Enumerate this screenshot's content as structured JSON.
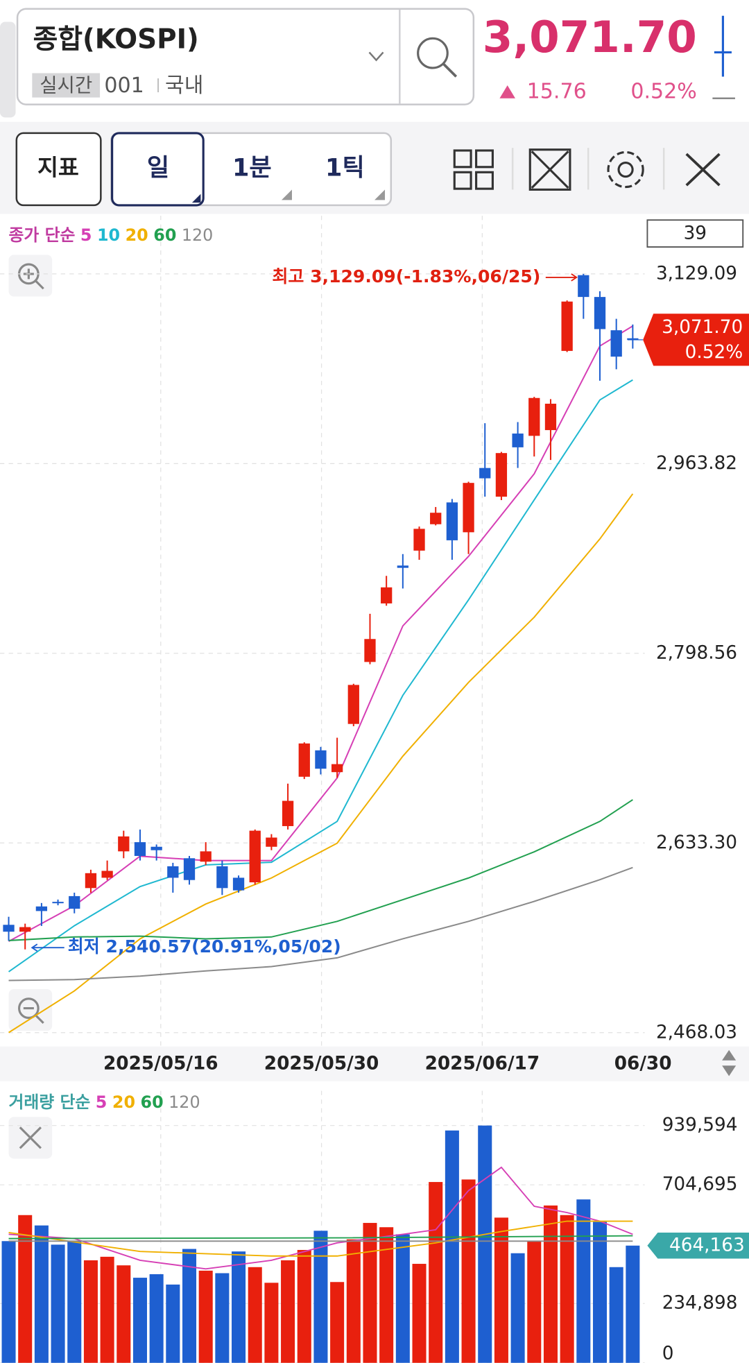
{
  "header": {
    "title": "종합(KOSPI)",
    "mode": "실시간",
    "code": "001",
    "market": "국내",
    "price": "3,071.70",
    "change": "15.76",
    "change_pct": "0.52%"
  },
  "toolbar": {
    "indicator_button": "지표",
    "periods": [
      "일",
      "1분",
      "1틱"
    ]
  },
  "count": 39,
  "price_chart": {
    "type": "candlestick",
    "legend_label": "종가 단순",
    "up_color": "#e8200e",
    "down_color": "#1e5fd0",
    "candles": {
      "open": [
        2562,
        2556,
        2578,
        2582,
        2587,
        2594,
        2603,
        2626,
        2634,
        2630,
        2613,
        2620,
        2617,
        2613,
        2603,
        2599,
        2630,
        2648,
        2691,
        2714,
        2695,
        2737,
        2791,
        2842,
        2875,
        2888,
        2911,
        2930,
        2904,
        2960,
        2935,
        2990,
        2988,
        2993,
        3062,
        3128,
        3109,
        3080,
        3073
      ],
      "high": [
        2569,
        2563,
        2581,
        2584,
        2590,
        2610,
        2618,
        2644,
        2645,
        2632,
        2616,
        2622,
        2634,
        2618,
        2605,
        2645,
        2641,
        2685,
        2721,
        2717,
        2725,
        2772,
        2833,
        2866,
        2885,
        2909,
        2926,
        2933,
        2948,
        2999,
        2974,
        3000,
        3022,
        3020,
        3106,
        3129.09,
        3114,
        3090,
        3085
      ],
      "low": [
        2548,
        2540.57,
        2561,
        2579,
        2572,
        2590,
        2601,
        2620,
        2618,
        2618,
        2590,
        2597,
        2614,
        2588,
        2590,
        2597,
        2627,
        2645,
        2689,
        2693,
        2690,
        2735,
        2789,
        2840,
        2855,
        2880,
        2910,
        2880,
        2885,
        2935,
        2932,
        2960,
        2970,
        2967,
        3061,
        3090,
        3036,
        3046,
        3064
      ],
      "close": [
        2556,
        2560,
        2574,
        2581,
        2576,
        2607,
        2609,
        2639,
        2622,
        2627,
        2603,
        2601,
        2626,
        2594,
        2592,
        2644,
        2638,
        2670,
        2720,
        2698,
        2702,
        2771,
        2811,
        2856,
        2873,
        2907,
        2921,
        2897,
        2947,
        2951,
        2973,
        2978,
        3021,
        3016,
        3105,
        3109,
        3081,
        3057,
        3071.7
      ]
    },
    "ma": [
      {
        "name": "5",
        "color": "#d63fb5",
        "x": [
          0,
          4,
          8,
          12,
          16,
          20,
          24,
          28,
          32,
          36,
          38
        ],
        "values": [
          2547.6,
          2578.6,
          2621.8,
          2618.0,
          2618.0,
          2689.9,
          2822.4,
          2883.0,
          2954.9,
          3066.3,
          3083.7
        ]
      },
      {
        "name": "10",
        "color": "#1fb8d0",
        "x": [
          0,
          4,
          8,
          12,
          16,
          20,
          24,
          28,
          32,
          36,
          38
        ],
        "values": [
          2521.1,
          2561.2,
          2595.3,
          2614.2,
          2616.5,
          2652.1,
          2761.9,
          2845.1,
          2932.2,
          3019.3,
          3036.7
        ]
      },
      {
        "name": "20",
        "color": "#f0b000",
        "x": [
          0,
          4,
          8,
          12,
          16,
          20,
          24,
          28,
          32,
          36,
          38
        ],
        "values": [
          2468.1,
          2504.4,
          2549.8,
          2580.1,
          2602.8,
          2633.1,
          2708.9,
          2773.2,
          2830.0,
          2898.2,
          2937.5
        ]
      },
      {
        "name": "60",
        "color": "#22a050",
        "x": [
          0,
          4,
          8,
          12,
          16,
          20,
          24,
          28,
          32,
          36,
          38
        ],
        "values": [
          2548.3,
          2551.4,
          2552.1,
          2549.8,
          2551.4,
          2565.0,
          2583.9,
          2602.8,
          2625.6,
          2652.1,
          2671.0
        ]
      },
      {
        "name": "120",
        "color": "#8a8a8a",
        "x": [
          0,
          4,
          8,
          12,
          16,
          20,
          24,
          28,
          32,
          36,
          38
        ],
        "values": [
          2513.5,
          2514.3,
          2517.3,
          2521.8,
          2525.6,
          2533.2,
          2549.8,
          2565.0,
          2582.4,
          2601.3,
          2611.9
        ]
      }
    ],
    "ylim": [
      2459,
      3178.3
    ],
    "yticks": [
      {
        "value": 3129.09,
        "label": "3,129.09"
      },
      {
        "value": 2963.82,
        "label": "2,963.82"
      },
      {
        "value": 2798.56,
        "label": "2,798.56"
      },
      {
        "value": 2633.3,
        "label": "2,633.30"
      },
      {
        "value": 2468.03,
        "label": "2,468.03"
      }
    ],
    "x_labels": [
      "2025/05/16",
      "2025/05/30",
      "2025/06/17",
      "06/30"
    ],
    "high_annotation": "최고 3,129.09(-1.83%,06/25)",
    "low_annotation": "최저 2,540.57(20.91%,05/02)",
    "last_label": "3,071.70",
    "last_change": "0.52%"
  },
  "volume_chart": {
    "type": "bar",
    "legend_label": "거래량 단순",
    "values": [
      482000,
      585000,
      544000,
      468000,
      482000,
      406000,
      420000,
      386000,
      337000,
      351000,
      310000,
      451000,
      365000,
      355000,
      441000,
      379000,
      317000,
      406000,
      447000,
      523000,
      320000,
      489000,
      554000,
      537000,
      509000,
      392000,
      716000,
      920000,
      726000,
      939594,
      575000,
      434000,
      482000,
      623000,
      585000,
      647000,
      558000,
      379000,
      464163
    ],
    "ma": [
      {
        "name": "5",
        "color": "#d63fb5",
        "x": [
          0,
          4,
          8,
          12,
          16,
          20,
          24,
          26,
          28,
          30,
          32,
          34,
          36,
          38
        ],
        "values": [
          509000,
          492000,
          406000,
          372000,
          406000,
          475000,
          509000,
          527000,
          682000,
          774000,
          620000,
          595000,
          561000,
          509000
        ]
      },
      {
        "name": "20",
        "color": "#f0b000",
        "x": [
          0,
          8,
          16,
          20,
          26,
          30,
          34,
          38
        ],
        "values": [
          516000,
          441000,
          423000,
          423000,
          475000,
          520000,
          561000,
          561000
        ]
      },
      {
        "name": "60",
        "color": "#22a050",
        "x": [
          0,
          20,
          38
        ],
        "values": [
          492000,
          495000,
          503000
        ]
      },
      {
        "name": "120",
        "color": "#8a8a8a",
        "x": [
          0,
          38
        ],
        "values": [
          482000,
          482000
        ]
      }
    ],
    "ylim": [
      0,
      1077000
    ],
    "yticks": [
      {
        "value": 939594,
        "label": "939,594"
      },
      {
        "value": 704695,
        "label": "704,695"
      },
      {
        "value": 234898,
        "label": "234,898"
      },
      0
    ],
    "last_label": "464,163"
  }
}
